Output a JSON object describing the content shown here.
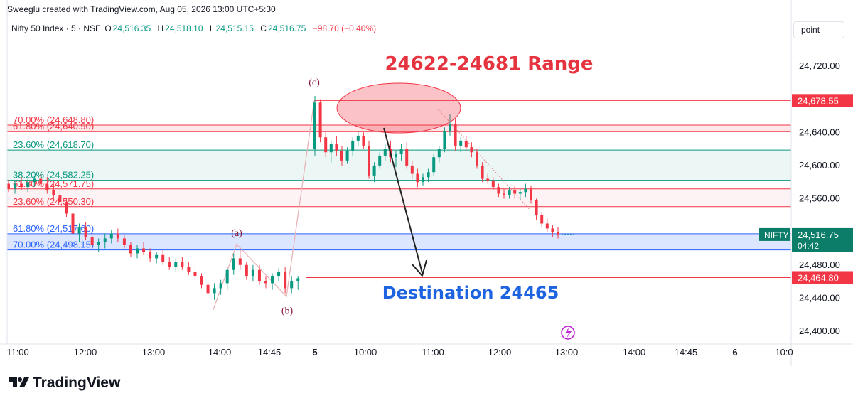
{
  "header": {
    "attribution": "Sweeglu created with TradingView.com, Aug 05, 2026 13:00 UTC+5:30"
  },
  "legend": {
    "symbol": "Nifty 50 Index · 5 · NSE",
    "open_label": "O",
    "open": "24,516.35",
    "high_label": "H",
    "high": "24,518.10",
    "low_label": "L",
    "low": "24,515.15",
    "close_label": "C",
    "close": "24,516.75",
    "change": "−98.70 (−0.40%)"
  },
  "controls": {
    "scale_mode": "point"
  },
  "footer": {
    "brand": "TradingView"
  },
  "colors": {
    "up": "#089981",
    "down": "#f23645",
    "fib_red": "#f23645",
    "fib_green": "#089981",
    "fib_blue": "#2962ff",
    "annotation_blue": "#1e63e0",
    "annotation_red": "#e5343f"
  },
  "chart_data": {
    "type": "candlestick",
    "ylim": [
      24380,
      24740
    ],
    "y_ticks": [
      "24,720.00",
      "24,680.00",
      "24,640.00",
      "24,600.00",
      "24,560.00",
      "24,520.00",
      "24,480.00",
      "24,440.00",
      "24,400.00"
    ],
    "x_ticks": [
      "11:00",
      "12:00",
      "13:00",
      "14:00",
      "14:45",
      "5",
      "10:00",
      "11:00",
      "12:00",
      "13:00",
      "14:00",
      "14:45",
      "6",
      "10:0"
    ],
    "price_labels": [
      {
        "text": "24,678.55",
        "value": 24678.55,
        "kind": "level"
      },
      {
        "text": "24,464.80",
        "value": 24464.8,
        "kind": "level"
      },
      {
        "text": "24,516.75",
        "value": 24516.75,
        "kind": "last",
        "symbol": "NIFTY",
        "countdown": "04:42"
      }
    ],
    "fib_levels": [
      {
        "label": "70.00% (24,648.80)",
        "value": 24648.8,
        "color": "red"
      },
      {
        "label": "61.80% (24,640.90)",
        "value": 24640.9,
        "color": "red"
      },
      {
        "label": "23.60% (24,618.70)",
        "value": 24618.7,
        "color": "green"
      },
      {
        "label": "38.20% (24,582.25)",
        "value": 24582.25,
        "color": "green"
      },
      {
        "label": "61.80% (24,571.75)",
        "value": 24571.75,
        "color": "red"
      },
      {
        "label": "23.60% (24,550.30)",
        "value": 24550.3,
        "color": "red"
      },
      {
        "label": "61.80% (24,517.60)",
        "value": 24517.6,
        "color": "blue"
      },
      {
        "label": "70.00% (24,498.15)",
        "value": 24498.15,
        "color": "blue"
      }
    ],
    "wave_labels": [
      "(a)",
      "(b)",
      "(c)"
    ],
    "annotations": {
      "range_text": "24622-24681 Range",
      "destination_text": "Destination 24465"
    },
    "series": [
      {
        "name": "Aug 04 (11:00–15:30)",
        "candles": [
          [
            24578,
            24583,
            24568,
            24572
          ],
          [
            24572,
            24582,
            24566,
            24578
          ],
          [
            24578,
            24586,
            24570,
            24574
          ],
          [
            24574,
            24584,
            24568,
            24580
          ],
          [
            24580,
            24588,
            24574,
            24584
          ],
          [
            24584,
            24590,
            24574,
            24578
          ],
          [
            24578,
            24586,
            24566,
            24570
          ],
          [
            24570,
            24578,
            24560,
            24564
          ],
          [
            24564,
            24572,
            24552,
            24556
          ],
          [
            24556,
            24560,
            24538,
            24542
          ],
          [
            24542,
            24546,
            24512,
            24518
          ],
          [
            24518,
            24530,
            24508,
            24526
          ],
          [
            24526,
            24532,
            24510,
            24514
          ],
          [
            24514,
            24520,
            24500,
            24504
          ],
          [
            24504,
            24512,
            24496,
            24508
          ],
          [
            24508,
            24518,
            24500,
            24512
          ],
          [
            24512,
            24522,
            24506,
            24518
          ],
          [
            24518,
            24524,
            24508,
            24512
          ],
          [
            24512,
            24516,
            24500,
            24504
          ],
          [
            24504,
            24508,
            24490,
            24494
          ],
          [
            24494,
            24504,
            24488,
            24500
          ],
          [
            24500,
            24508,
            24492,
            24496
          ],
          [
            24496,
            24500,
            24484,
            24488
          ],
          [
            24488,
            24496,
            24482,
            24492
          ],
          [
            24492,
            24498,
            24480,
            24484
          ],
          [
            24484,
            24490,
            24474,
            24478
          ],
          [
            24478,
            24488,
            24472,
            24484
          ],
          [
            24484,
            24490,
            24474,
            24478
          ],
          [
            24478,
            24484,
            24468,
            24472
          ],
          [
            24472,
            24478,
            24462,
            24466
          ],
          [
            24466,
            24470,
            24452,
            24456
          ],
          [
            24456,
            24462,
            24440,
            24446
          ],
          [
            24446,
            24458,
            24438,
            24452
          ],
          [
            24452,
            24462,
            24444,
            24458
          ],
          [
            24458,
            24478,
            24450,
            24474
          ],
          [
            24474,
            24494,
            24468,
            24488
          ],
          [
            24488,
            24498,
            24474,
            24480
          ],
          [
            24480,
            24484,
            24462,
            24466
          ],
          [
            24466,
            24480,
            24460,
            24474
          ],
          [
            24474,
            24480,
            24456,
            24460
          ],
          [
            24460,
            24466,
            24452,
            24458
          ],
          [
            24458,
            24470,
            24450,
            24466
          ],
          [
            24466,
            24476,
            24460,
            24472
          ],
          [
            24472,
            24478,
            24446,
            24452
          ],
          [
            24452,
            24466,
            24446,
            24460
          ],
          [
            24460,
            24466,
            24450,
            24464
          ]
        ]
      },
      {
        "name": "Aug 05 (09:15–13:00)",
        "candles": [
          [
            24620,
            24684,
            24612,
            24676
          ],
          [
            24676,
            24680,
            24628,
            24634
          ],
          [
            24634,
            24640,
            24610,
            24616
          ],
          [
            24616,
            24630,
            24604,
            24626
          ],
          [
            24626,
            24636,
            24612,
            24618
          ],
          [
            24618,
            24624,
            24600,
            24606
          ],
          [
            24606,
            24622,
            24602,
            24618
          ],
          [
            24618,
            24634,
            24612,
            24630
          ],
          [
            24630,
            24642,
            24624,
            24636
          ],
          [
            24636,
            24640,
            24620,
            24624
          ],
          [
            24624,
            24630,
            24584,
            24588
          ],
          [
            24588,
            24604,
            24580,
            24600
          ],
          [
            24600,
            24616,
            24596,
            24612
          ],
          [
            24612,
            24626,
            24606,
            24620
          ],
          [
            24620,
            24630,
            24604,
            24610
          ],
          [
            24610,
            24618,
            24598,
            24614
          ],
          [
            24614,
            24626,
            24606,
            24620
          ],
          [
            24620,
            24628,
            24596,
            24600
          ],
          [
            24600,
            24606,
            24584,
            24590
          ],
          [
            24590,
            24596,
            24574,
            24580
          ],
          [
            24580,
            24590,
            24576,
            24586
          ],
          [
            24586,
            24596,
            24580,
            24592
          ],
          [
            24592,
            24614,
            24588,
            24610
          ],
          [
            24610,
            24624,
            24604,
            24620
          ],
          [
            24620,
            24646,
            24616,
            24642
          ],
          [
            24642,
            24662,
            24636,
            24650
          ],
          [
            24650,
            24656,
            24618,
            24624
          ],
          [
            24624,
            24634,
            24616,
            24630
          ],
          [
            24630,
            24636,
            24618,
            24622
          ],
          [
            24622,
            24628,
            24610,
            24616
          ],
          [
            24616,
            24620,
            24596,
            24600
          ],
          [
            24600,
            24604,
            24580,
            24584
          ],
          [
            24584,
            24590,
            24578,
            24582
          ],
          [
            24582,
            24586,
            24570,
            24574
          ],
          [
            24574,
            24578,
            24562,
            24566
          ],
          [
            24566,
            24572,
            24560,
            24564
          ],
          [
            24564,
            24574,
            24560,
            24570
          ],
          [
            24570,
            24576,
            24560,
            24566
          ],
          [
            24566,
            24572,
            24558,
            24568
          ],
          [
            24568,
            24578,
            24562,
            24572
          ],
          [
            24572,
            24576,
            24554,
            24558
          ],
          [
            24558,
            24560,
            24534,
            24540
          ],
          [
            24540,
            24544,
            24526,
            24530
          ],
          [
            24530,
            24536,
            24520,
            24524
          ],
          [
            24524,
            24528,
            24514,
            24520
          ],
          [
            24520,
            24526,
            24512,
            24516
          ]
        ]
      }
    ]
  }
}
